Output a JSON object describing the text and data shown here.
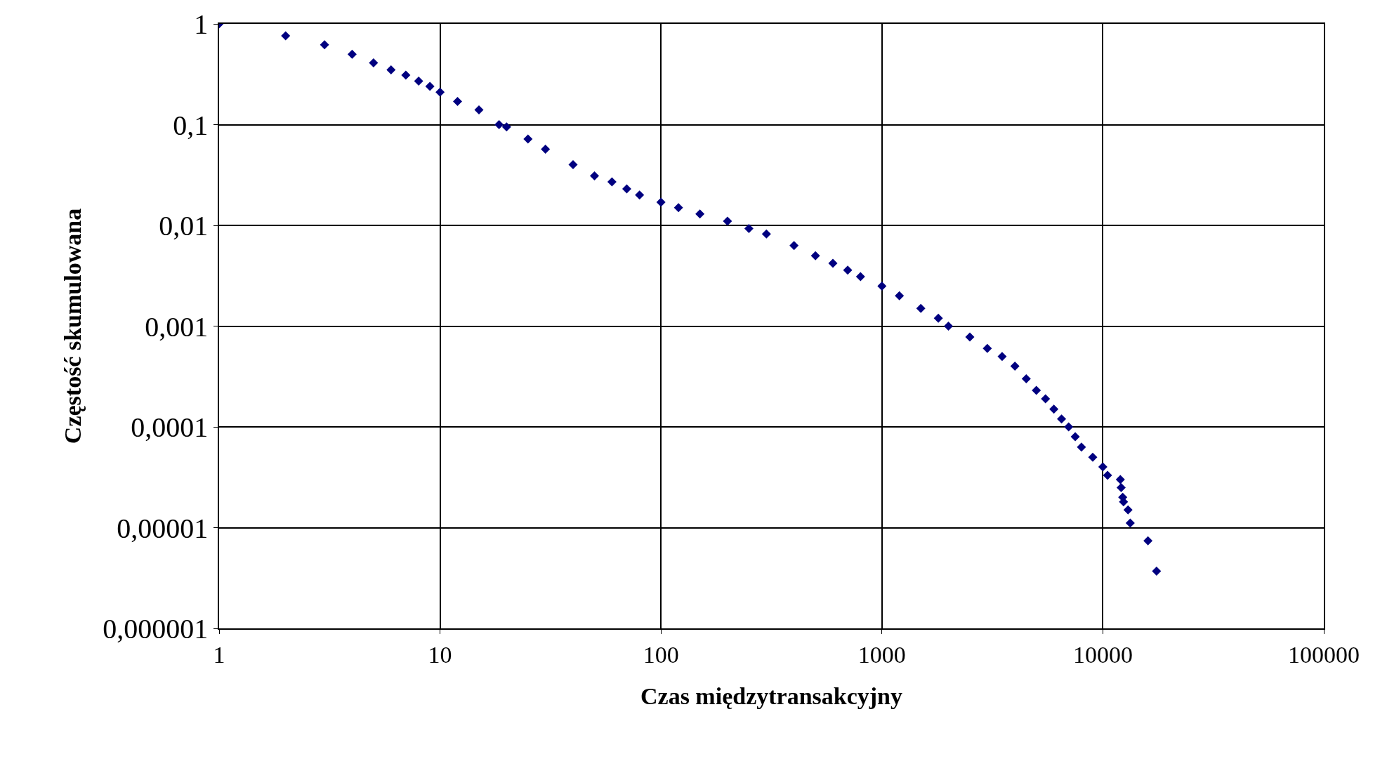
{
  "chart_data": {
    "type": "scatter",
    "xlabel": "Czas międzytransakcyjny",
    "ylabel": "Częstość skumulowana",
    "log": "xy",
    "grid": true,
    "marker": "diamond",
    "xlim": [
      1,
      100000
    ],
    "xticks": [
      1,
      10,
      100,
      1000,
      10000,
      100000
    ],
    "ylim": [
      1e-06,
      1
    ],
    "yticks": [
      1,
      {
        "value": 0.1,
        "label": "0,1"
      },
      {
        "value": 0.01,
        "label": "0,01"
      },
      {
        "value": 0.001,
        "label": "0,001"
      },
      {
        "value": 0.0001,
        "label": "0,0001"
      },
      {
        "value": 1e-05,
        "label": "0,00001"
      },
      {
        "value": 1e-06,
        "label": "0,000001"
      }
    ],
    "series": [
      {
        "color": "#000080",
        "x": [
          1,
          2,
          3,
          4,
          5,
          6,
          7,
          8,
          9,
          10,
          12,
          15,
          18.5,
          20,
          25,
          30,
          40,
          50,
          60,
          70,
          80,
          100,
          120,
          150,
          200,
          250,
          300,
          400,
          500,
          600,
          700,
          800,
          1000,
          1200,
          1500,
          1800,
          2000,
          2500,
          3000,
          3500,
          4000,
          4500,
          5000,
          5500,
          6000,
          6500,
          7000,
          7500,
          8000,
          9000,
          10000,
          10500,
          12000,
          12100,
          12300,
          12400,
          13000,
          13300,
          16000,
          17500
        ],
        "values": [
          1,
          0.76,
          0.62,
          0.5,
          0.41,
          0.35,
          0.31,
          0.27,
          0.24,
          0.21,
          0.17,
          0.14,
          0.1,
          0.095,
          0.072,
          0.057,
          0.04,
          0.031,
          0.027,
          0.023,
          0.02,
          0.017,
          0.015,
          0.013,
          0.011,
          0.0093,
          0.0082,
          0.0063,
          0.005,
          0.0042,
          0.0036,
          0.0031,
          0.0025,
          0.002,
          0.0015,
          0.0012,
          0.001,
          0.00078,
          0.0006,
          0.0005,
          0.0004,
          0.0003,
          0.00023,
          0.00019,
          0.00015,
          0.00012,
          0.0001,
          8e-05,
          6.3e-05,
          5e-05,
          4e-05,
          3.3e-05,
          3e-05,
          2.5e-05,
          2e-05,
          1.8e-05,
          1.5e-05,
          1.11e-05,
          7.4e-06,
          3.7e-06
        ]
      }
    ]
  }
}
